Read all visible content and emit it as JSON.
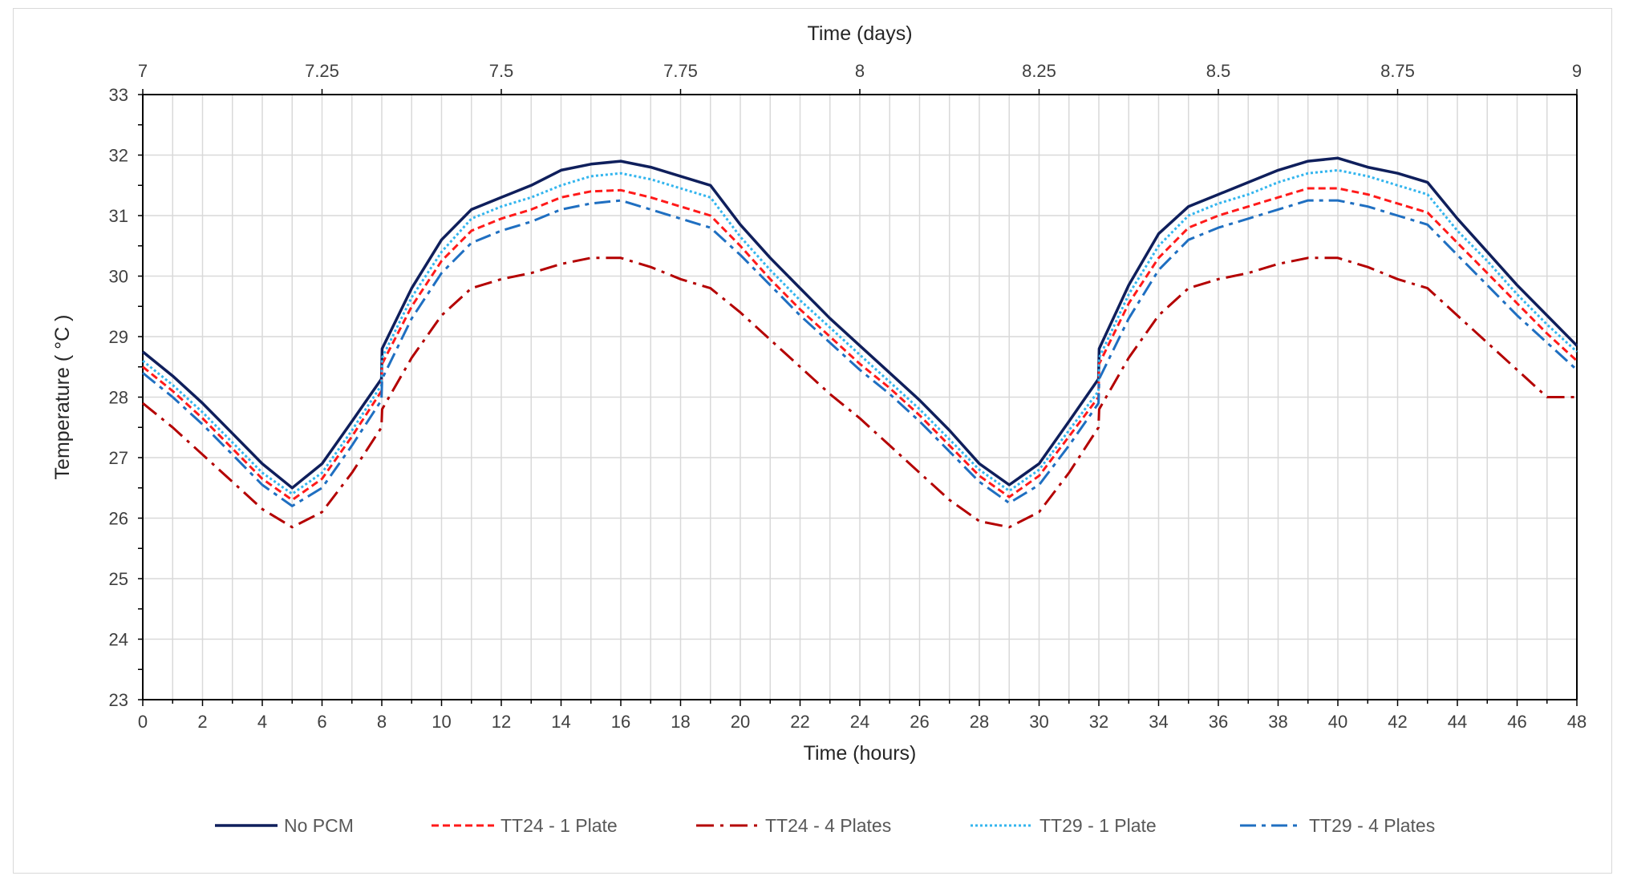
{
  "chart_data": {
    "type": "line",
    "title": "",
    "xlabel": "Time (hours)",
    "ylabel": "Temperature ( °C )",
    "x2label": "Time (days)",
    "xlim": [
      0,
      48
    ],
    "ylim": [
      23,
      33
    ],
    "grid": true,
    "legend_position": "bottom",
    "x_ticks": [
      0,
      2,
      4,
      6,
      8,
      10,
      12,
      14,
      16,
      18,
      20,
      22,
      24,
      26,
      28,
      30,
      32,
      34,
      36,
      38,
      40,
      42,
      44,
      46,
      48
    ],
    "y_ticks": [
      23,
      24,
      25,
      26,
      27,
      28,
      29,
      30,
      31,
      32,
      33
    ],
    "x2_ticks": [
      {
        "label": "7",
        "hours": 0
      },
      {
        "label": "7.25",
        "hours": 6
      },
      {
        "label": "7.5",
        "hours": 12
      },
      {
        "label": "7.75",
        "hours": 18
      },
      {
        "label": "8",
        "hours": 24
      },
      {
        "label": "8.25",
        "hours": 30
      },
      {
        "label": "8.5",
        "hours": 36
      },
      {
        "label": "8.75",
        "hours": 42
      },
      {
        "label": "9",
        "hours": 48
      }
    ],
    "x": [
      0,
      1,
      2,
      3,
      4,
      5,
      6,
      7,
      7.99,
      8.01,
      9,
      10,
      11,
      12,
      13,
      14,
      15,
      16,
      17,
      18,
      19,
      20,
      21,
      22,
      23,
      24,
      25,
      26,
      27,
      28,
      29,
      30,
      31,
      31.99,
      32.01,
      33,
      34,
      35,
      36,
      37,
      38,
      39,
      40,
      41,
      42,
      43,
      44,
      45,
      46,
      47,
      48
    ],
    "series": [
      {
        "name": "No PCM",
        "color": "#0f1f5c",
        "dash": "solid",
        "values": [
          28.75,
          28.35,
          27.9,
          27.4,
          26.9,
          26.5,
          26.9,
          27.6,
          28.3,
          28.8,
          29.8,
          30.6,
          31.1,
          31.3,
          31.5,
          31.75,
          31.85,
          31.9,
          31.8,
          31.65,
          31.5,
          30.85,
          30.3,
          29.8,
          29.3,
          28.85,
          28.4,
          27.95,
          27.45,
          26.9,
          26.55,
          26.9,
          27.6,
          28.3,
          28.8,
          29.85,
          30.7,
          31.15,
          31.35,
          31.55,
          31.75,
          31.9,
          31.95,
          31.8,
          31.7,
          31.55,
          30.95,
          30.4,
          29.85,
          29.35,
          28.85
        ]
      },
      {
        "name": "TT24 - 1 Plate",
        "color": "#ff1a1a",
        "dash": "dashed",
        "values": [
          28.5,
          28.1,
          27.65,
          27.15,
          26.65,
          26.3,
          26.65,
          27.35,
          28.1,
          28.55,
          29.5,
          30.25,
          30.75,
          30.95,
          31.1,
          31.3,
          31.4,
          31.42,
          31.3,
          31.15,
          31.0,
          30.5,
          29.95,
          29.45,
          29.0,
          28.55,
          28.15,
          27.7,
          27.2,
          26.7,
          26.35,
          26.7,
          27.35,
          28.0,
          28.55,
          29.55,
          30.3,
          30.8,
          31.0,
          31.15,
          31.3,
          31.45,
          31.45,
          31.35,
          31.2,
          31.05,
          30.55,
          30.05,
          29.55,
          29.05,
          28.6
        ]
      },
      {
        "name": "TT24 - 4 Plates",
        "color": "#b40000",
        "dash": "dashdot",
        "values": [
          27.9,
          27.5,
          27.05,
          26.6,
          26.15,
          25.85,
          26.1,
          26.75,
          27.5,
          27.8,
          28.65,
          29.35,
          29.8,
          29.95,
          30.05,
          30.2,
          30.3,
          30.3,
          30.15,
          29.95,
          29.8,
          29.4,
          28.95,
          28.5,
          28.05,
          27.65,
          27.2,
          26.75,
          26.3,
          25.95,
          25.85,
          26.1,
          26.75,
          27.5,
          27.8,
          28.65,
          29.35,
          29.8,
          29.95,
          30.05,
          30.2,
          30.3,
          30.3,
          30.15,
          29.95,
          29.8,
          29.35,
          28.9,
          28.45,
          28.0,
          28.0
        ]
      },
      {
        "name": "TT29 - 1 Plate",
        "color": "#33b5ee",
        "dash": "dotted",
        "values": [
          28.6,
          28.2,
          27.75,
          27.25,
          26.75,
          26.4,
          26.75,
          27.45,
          28.2,
          28.65,
          29.65,
          30.4,
          30.95,
          31.15,
          31.3,
          31.5,
          31.65,
          31.7,
          31.6,
          31.45,
          31.3,
          30.65,
          30.1,
          29.6,
          29.15,
          28.7,
          28.25,
          27.8,
          27.3,
          26.8,
          26.45,
          26.8,
          27.45,
          28.1,
          28.65,
          29.7,
          30.5,
          31.0,
          31.2,
          31.35,
          31.55,
          31.7,
          31.75,
          31.65,
          31.5,
          31.35,
          30.75,
          30.25,
          29.7,
          29.2,
          28.75
        ]
      },
      {
        "name": "TT29 - 4 Plates",
        "color": "#1f6fc1",
        "dash": "longdashdot",
        "values": [
          28.4,
          28.0,
          27.55,
          27.05,
          26.55,
          26.2,
          26.5,
          27.2,
          27.95,
          28.3,
          29.3,
          30.05,
          30.55,
          30.75,
          30.9,
          31.1,
          31.2,
          31.25,
          31.1,
          30.95,
          30.8,
          30.35,
          29.85,
          29.35,
          28.9,
          28.45,
          28.05,
          27.6,
          27.1,
          26.6,
          26.25,
          26.55,
          27.2,
          27.9,
          28.3,
          29.3,
          30.1,
          30.6,
          30.8,
          30.95,
          31.1,
          31.25,
          31.25,
          31.15,
          31.0,
          30.85,
          30.35,
          29.85,
          29.35,
          28.9,
          28.45
        ]
      }
    ]
  }
}
